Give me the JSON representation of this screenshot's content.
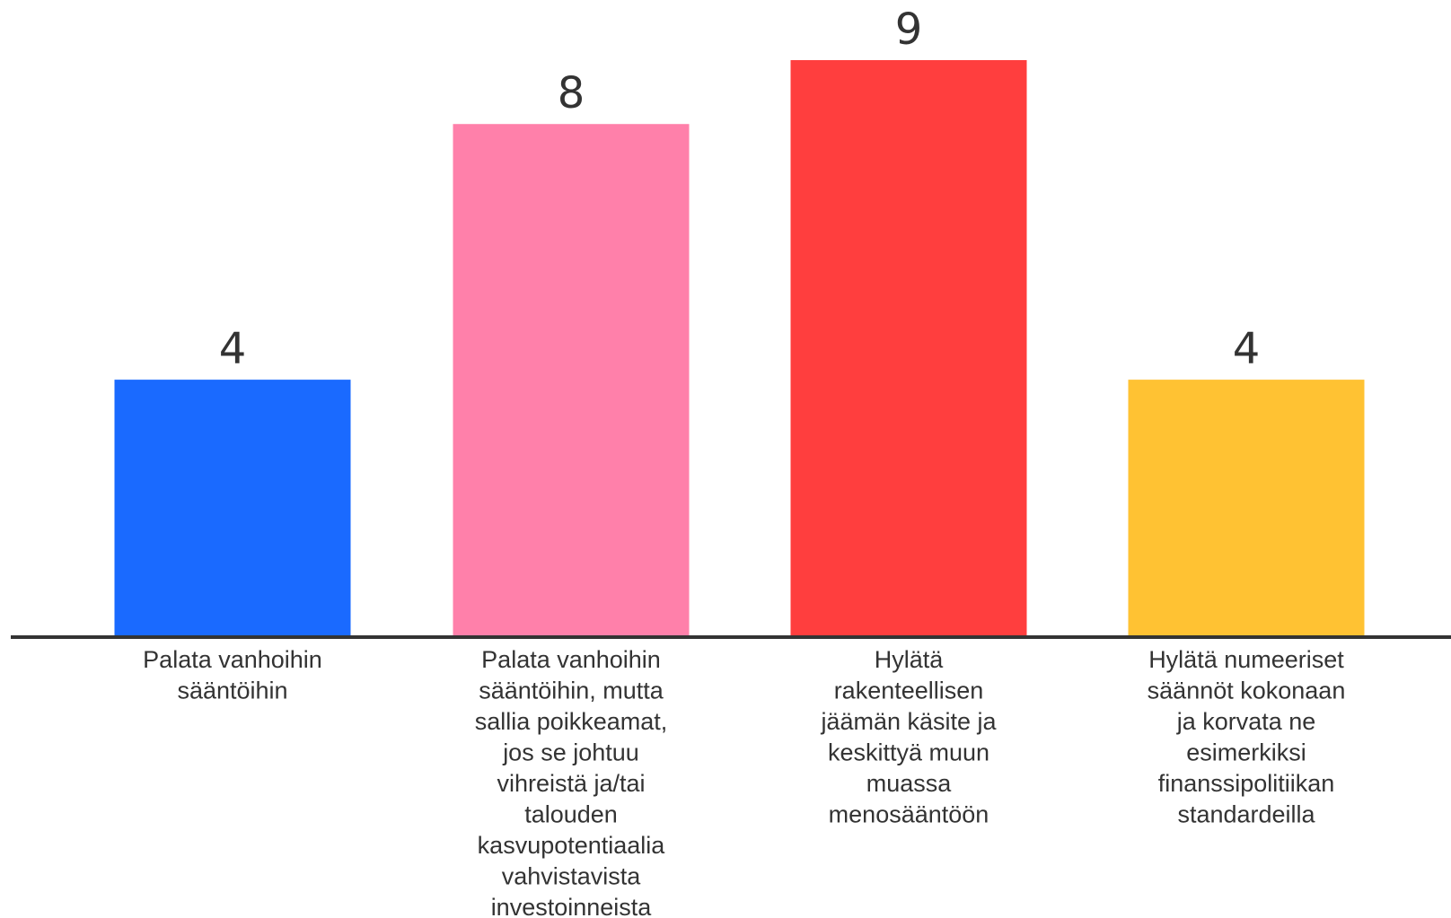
{
  "chart_data": {
    "type": "bar",
    "categories": [
      [
        "Palata vanhoihin",
        "sääntöihin"
      ],
      [
        "Palata vanhoihin",
        "sääntöihin, mutta",
        "sallia poikkeamat,",
        "jos se johtuu",
        "vihreistä ja/tai",
        "talouden",
        "kasvupotentiaalia",
        "vahvistavista",
        "investoinneista"
      ],
      [
        "Hylätä",
        "rakenteellisen",
        "jäämän käsite ja",
        "keskittyä muun",
        "muassa",
        "menosääntöön"
      ],
      [
        "Hylätä numeeriset",
        "säännöt kokonaan",
        "ja korvata ne",
        "esimerkiksi",
        "finanssipolitiikan",
        "standardeilla"
      ]
    ],
    "values": [
      4,
      8,
      9,
      4
    ],
    "data_labels": [
      "4",
      "8",
      "9",
      "4"
    ],
    "colors": [
      "#1A6AFF",
      "#FF80AA",
      "#FF3E3E",
      "#FFC233"
    ],
    "axis_color": "#333333",
    "ylim": [
      0,
      9
    ],
    "grid": false,
    "legend": "none",
    "title": "",
    "xlabel": "",
    "ylabel": ""
  }
}
